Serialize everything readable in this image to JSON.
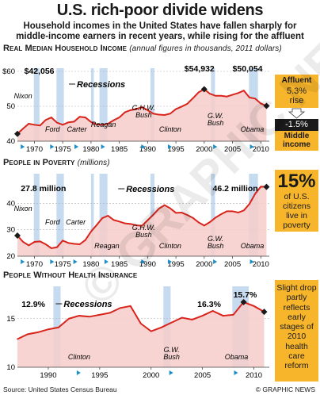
{
  "title": "U.S. rich-poor divide widens",
  "subtitle": "Household incomes in the United States have fallen sharply for middle-income earners in recent years, while rising for the affluent",
  "recessions_label": "Recessions",
  "recession_bands": [
    [
      1969.9,
      1970.9
    ],
    [
      1973.9,
      1975.2
    ],
    [
      1980.0,
      1980.5
    ],
    [
      1981.5,
      1982.9
    ],
    [
      1990.5,
      1991.2
    ],
    [
      2001.2,
      2001.9
    ],
    [
      2007.9,
      2009.5
    ]
  ],
  "colors": {
    "line": "#d9241c",
    "fill": "#f6cdc9",
    "recession": "#c6dbef",
    "accent": "#f7b52b",
    "arrow": "#1a8fc7"
  },
  "watermark": "© GRAPHIC NEWS",
  "panels": {
    "income": {
      "title": "Real Median Household Income",
      "note": "(annual figures in thousands, 2011 dollars)",
      "presidents": [
        "Nixon",
        "Ford",
        "Carter",
        "Reagan",
        "G.H.W. Bush",
        "Clinton",
        "G.W. Bush",
        "Obama"
      ],
      "annotations": [
        "$42,056",
        "$54,932",
        "$50,054"
      ]
    },
    "poverty": {
      "title": "People in Poverty",
      "note": "(millions)",
      "presidents": [
        "Nixon",
        "Ford",
        "Carter",
        "Reagan",
        "G.H.W. Bush",
        "Clinton",
        "G.W. Bush",
        "Obama"
      ],
      "annotations": [
        "27.8 million",
        "46.2 million"
      ]
    },
    "health": {
      "title": "People Without Health Insurance",
      "presidents": [
        "Clinton",
        "G.W. Bush",
        "Obama"
      ],
      "annotations": [
        "12.9%",
        "16.3%",
        "15.7%"
      ]
    }
  },
  "side": {
    "income": {
      "top_label": "Affluent",
      "top_value": "5.3%",
      "top_sub": "rise",
      "bottom_value": "-1.5%",
      "bottom_label": "Middle income"
    },
    "poverty": {
      "big": "15%",
      "text": "of U.S. citizens live in poverty"
    },
    "health": {
      "text": "Slight drop partly reflects early stages of 2010 health care reform"
    }
  },
  "footer": {
    "source": "Source: United States Census Bureau",
    "credit": "© GRAPHIC NEWS"
  },
  "chart_data": [
    {
      "type": "area",
      "title": "Real Median Household Income",
      "ylabel": "annual figures in thousands, 2011 dollars",
      "ylim": [
        40,
        60
      ],
      "xlim": [
        1967,
        2011.5
      ],
      "yticks": [
        "$60",
        "50",
        "40"
      ],
      "xticks": [
        1970,
        1975,
        1980,
        1985,
        1990,
        1995,
        2000,
        2005,
        2010
      ],
      "x": [
        1967,
        1968,
        1969,
        1970,
        1971,
        1972,
        1973,
        1974,
        1975,
        1976,
        1977,
        1978,
        1979,
        1980,
        1981,
        1982,
        1983,
        1984,
        1985,
        1986,
        1987,
        1988,
        1989,
        1990,
        1991,
        1992,
        1993,
        1994,
        1995,
        1996,
        1997,
        1998,
        1999,
        2000,
        2001,
        2002,
        2003,
        2004,
        2005,
        2006,
        2007,
        2008,
        2009,
        2010,
        2011
      ],
      "series": [
        {
          "values": [
            42.1,
            43.6,
            45.0,
            44.7,
            44.5,
            46.1,
            46.8,
            45.3,
            44.7,
            45.4,
            45.6,
            47.0,
            46.8,
            45.5,
            44.8,
            44.7,
            45.0,
            46.0,
            46.8,
            48.3,
            48.9,
            49.2,
            49.8,
            48.9,
            47.9,
            47.6,
            47.5,
            47.9,
            49.2,
            49.9,
            50.7,
            52.3,
            54.0,
            54.9,
            53.6,
            53.0,
            53.0,
            52.8,
            53.3,
            53.8,
            54.5,
            52.5,
            52.2,
            50.8,
            50.1
          ]
        }
      ]
    },
    {
      "type": "area",
      "title": "People in Poverty",
      "ylabel": "millions",
      "ylim": [
        20,
        50
      ],
      "xlim": [
        1967,
        2011.5
      ],
      "yticks": [
        "40",
        "30",
        "20"
      ],
      "xticks": [
        1970,
        1975,
        1980,
        1985,
        1990,
        1995,
        2000,
        2005,
        2010
      ],
      "x": [
        1967,
        1968,
        1969,
        1970,
        1971,
        1972,
        1973,
        1974,
        1975,
        1976,
        1977,
        1978,
        1979,
        1980,
        1981,
        1982,
        1983,
        1984,
        1985,
        1986,
        1987,
        1988,
        1989,
        1990,
        1991,
        1992,
        1993,
        1994,
        1995,
        1996,
        1997,
        1998,
        1999,
        2000,
        2001,
        2002,
        2003,
        2004,
        2005,
        2006,
        2007,
        2008,
        2009,
        2010,
        2011
      ],
      "series": [
        {
          "values": [
            27.8,
            25.4,
            24.1,
            25.4,
            25.6,
            24.5,
            23.0,
            23.4,
            25.9,
            25.0,
            24.7,
            24.5,
            26.1,
            29.3,
            31.8,
            34.4,
            35.3,
            33.7,
            33.1,
            32.4,
            32.2,
            31.7,
            31.5,
            33.6,
            35.7,
            38.0,
            39.3,
            38.1,
            36.4,
            36.5,
            35.6,
            34.5,
            32.8,
            31.6,
            32.9,
            34.6,
            35.9,
            37.0,
            37.0,
            36.5,
            37.3,
            39.8,
            43.6,
            46.3,
            46.2
          ]
        }
      ]
    },
    {
      "type": "area",
      "title": "People Without Health Insurance",
      "ylabel": "",
      "ylim": [
        10,
        18
      ],
      "xlim": [
        1987,
        2011.5
      ],
      "yticks": [
        "15",
        "10"
      ],
      "xticks": [
        1990,
        1995,
        2000,
        2005,
        2010
      ],
      "x": [
        1987,
        1988,
        1989,
        1990,
        1991,
        1992,
        1993,
        1994,
        1995,
        1996,
        1997,
        1998,
        1999,
        2000,
        2001,
        2002,
        2003,
        2004,
        2005,
        2006,
        2007,
        2008,
        2009,
        2010,
        2011
      ],
      "series": [
        {
          "values": [
            12.9,
            13.4,
            13.6,
            13.9,
            14.1,
            15.0,
            15.3,
            15.2,
            15.4,
            15.6,
            16.1,
            16.3,
            14.5,
            13.7,
            14.1,
            14.6,
            15.1,
            14.9,
            15.3,
            15.8,
            15.3,
            15.4,
            16.7,
            16.3,
            15.7
          ]
        }
      ]
    }
  ]
}
